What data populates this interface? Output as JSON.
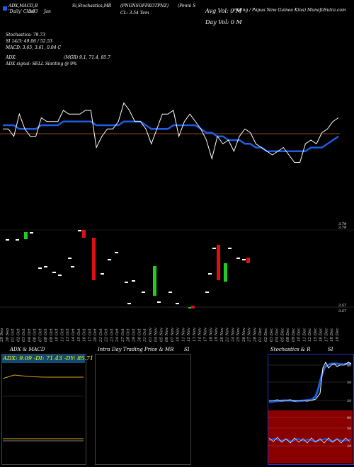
{
  "header": {
    "indicators_line": "ADX,MACD,B",
    "stoch_line": "Si,Stochastics,MR",
    "ticker_line": "(Penni S",
    "symbol": "(PNGNSOFFKOTPNZ)",
    "company_line": "rviting / Papua New Guinea Kina) MunafaSutra.com",
    "cl_line": "CL: 3.54 Tem",
    "legend_line": "'Daily' Close",
    "date_line": "Jan",
    "price_value": "3.93",
    "avg_vol": "Avg Vol: 0   M",
    "day_vol": "Day Vol: 0   M"
  },
  "stats": {
    "stochastics": "Stochastics: 79.73",
    "si": "SI 14/3: 49.06  / 52.53",
    "macd": "MACD: 3.65, 3.61, 0.04  C",
    "adx": "ADX:",
    "mgr": "(MGR) 9.1, 71.4,  85.7",
    "adx_signal": "ADX  signal: SELL  Slanting @ 9%"
  },
  "right_labels": {
    "price_top": "3.79",
    "price_top2": "3.79",
    "vol_low": "3.57",
    "vol_low2": "3.57"
  },
  "colors": {
    "price_line": "#ffffff",
    "ma_line": "#1f5de6",
    "baseline": "#8a4a1a",
    "vol_up": "#22cc22",
    "vol_down": "#dd1111",
    "panel_border": "#444444",
    "stoch_border": "#2233cc"
  },
  "dates": [
    "29 Sep",
    "30 Sep",
    "01 Oct",
    "02 Oct",
    "03 Oct",
    "04 Oct",
    "06 Oct",
    "07 Oct",
    "08 Oct",
    "09 Oct",
    "10 Oct",
    "11 Oct",
    "13 Oct",
    "14 Oct",
    "15 Oct",
    "16 Oct",
    "17 Oct",
    "20 Oct",
    "21 Oct",
    "22 Oct",
    "23 Oct",
    "24 Oct",
    "27 Oct",
    "28 Oct",
    "29 Oct",
    "30 Oct",
    "31 Oct",
    "03 Nov",
    "04 Nov",
    "05 Nov",
    "06 Nov",
    "07 Nov",
    "10 Nov",
    "11 Nov",
    "12 Nov",
    "13 Nov",
    "14 Nov",
    "17 Nov",
    "18 Nov",
    "19 Nov",
    "20 Nov",
    "21 Nov",
    "24 Nov",
    "25 Nov",
    "26 Nov",
    "27 Nov",
    "28 Nov",
    "01 Dec",
    "02 Dec",
    "03 Dec",
    "04 Dec",
    "05 Dec",
    "08 Dec",
    "09 Dec",
    "10 Dec",
    "11 Dec",
    "12 Dec",
    "15 Dec",
    "16 Dec",
    "17 Dec",
    "18 Dec",
    "19 Dec"
  ],
  "chart_data": [
    {
      "type": "line",
      "series": [
        {
          "values": [
            3.66,
            3.66,
            3.64,
            3.7,
            3.66,
            3.64,
            3.64,
            3.69,
            3.68,
            3.68,
            3.68,
            3.71,
            3.7,
            3.7,
            3.7,
            3.71,
            3.71,
            3.61,
            3.64,
            3.66,
            3.66,
            3.68,
            3.73,
            3.71,
            3.68,
            3.68,
            3.66,
            3.62,
            3.66,
            3.7,
            3.7,
            3.71,
            3.64,
            3.68,
            3.7,
            3.68,
            3.66,
            3.63,
            3.58,
            3.64,
            3.62,
            3.63,
            3.6,
            3.64,
            3.66,
            3.65,
            3.62,
            3.61,
            3.6,
            3.59,
            3.6,
            3.61,
            3.59,
            3.57,
            3.57,
            3.62,
            3.63,
            3.62,
            3.65,
            3.66,
            3.68,
            3.69
          ]
        },
        {
          "values": [
            3.67,
            3.67,
            3.67,
            3.66,
            3.66,
            3.66,
            3.66,
            3.67,
            3.67,
            3.67,
            3.67,
            3.68,
            3.68,
            3.68,
            3.68,
            3.68,
            3.68,
            3.67,
            3.67,
            3.67,
            3.67,
            3.67,
            3.68,
            3.68,
            3.68,
            3.68,
            3.67,
            3.66,
            3.66,
            3.66,
            3.66,
            3.67,
            3.67,
            3.67,
            3.67,
            3.67,
            3.66,
            3.65,
            3.65,
            3.64,
            3.64,
            3.63,
            3.63,
            3.63,
            3.62,
            3.62,
            3.61,
            3.61,
            3.6,
            3.6,
            3.6,
            3.6,
            3.6,
            3.6,
            3.6,
            3.6,
            3.61,
            3.61,
            3.61,
            3.62,
            3.63,
            3.64
          ]
        }
      ]
    }
  ]
}
